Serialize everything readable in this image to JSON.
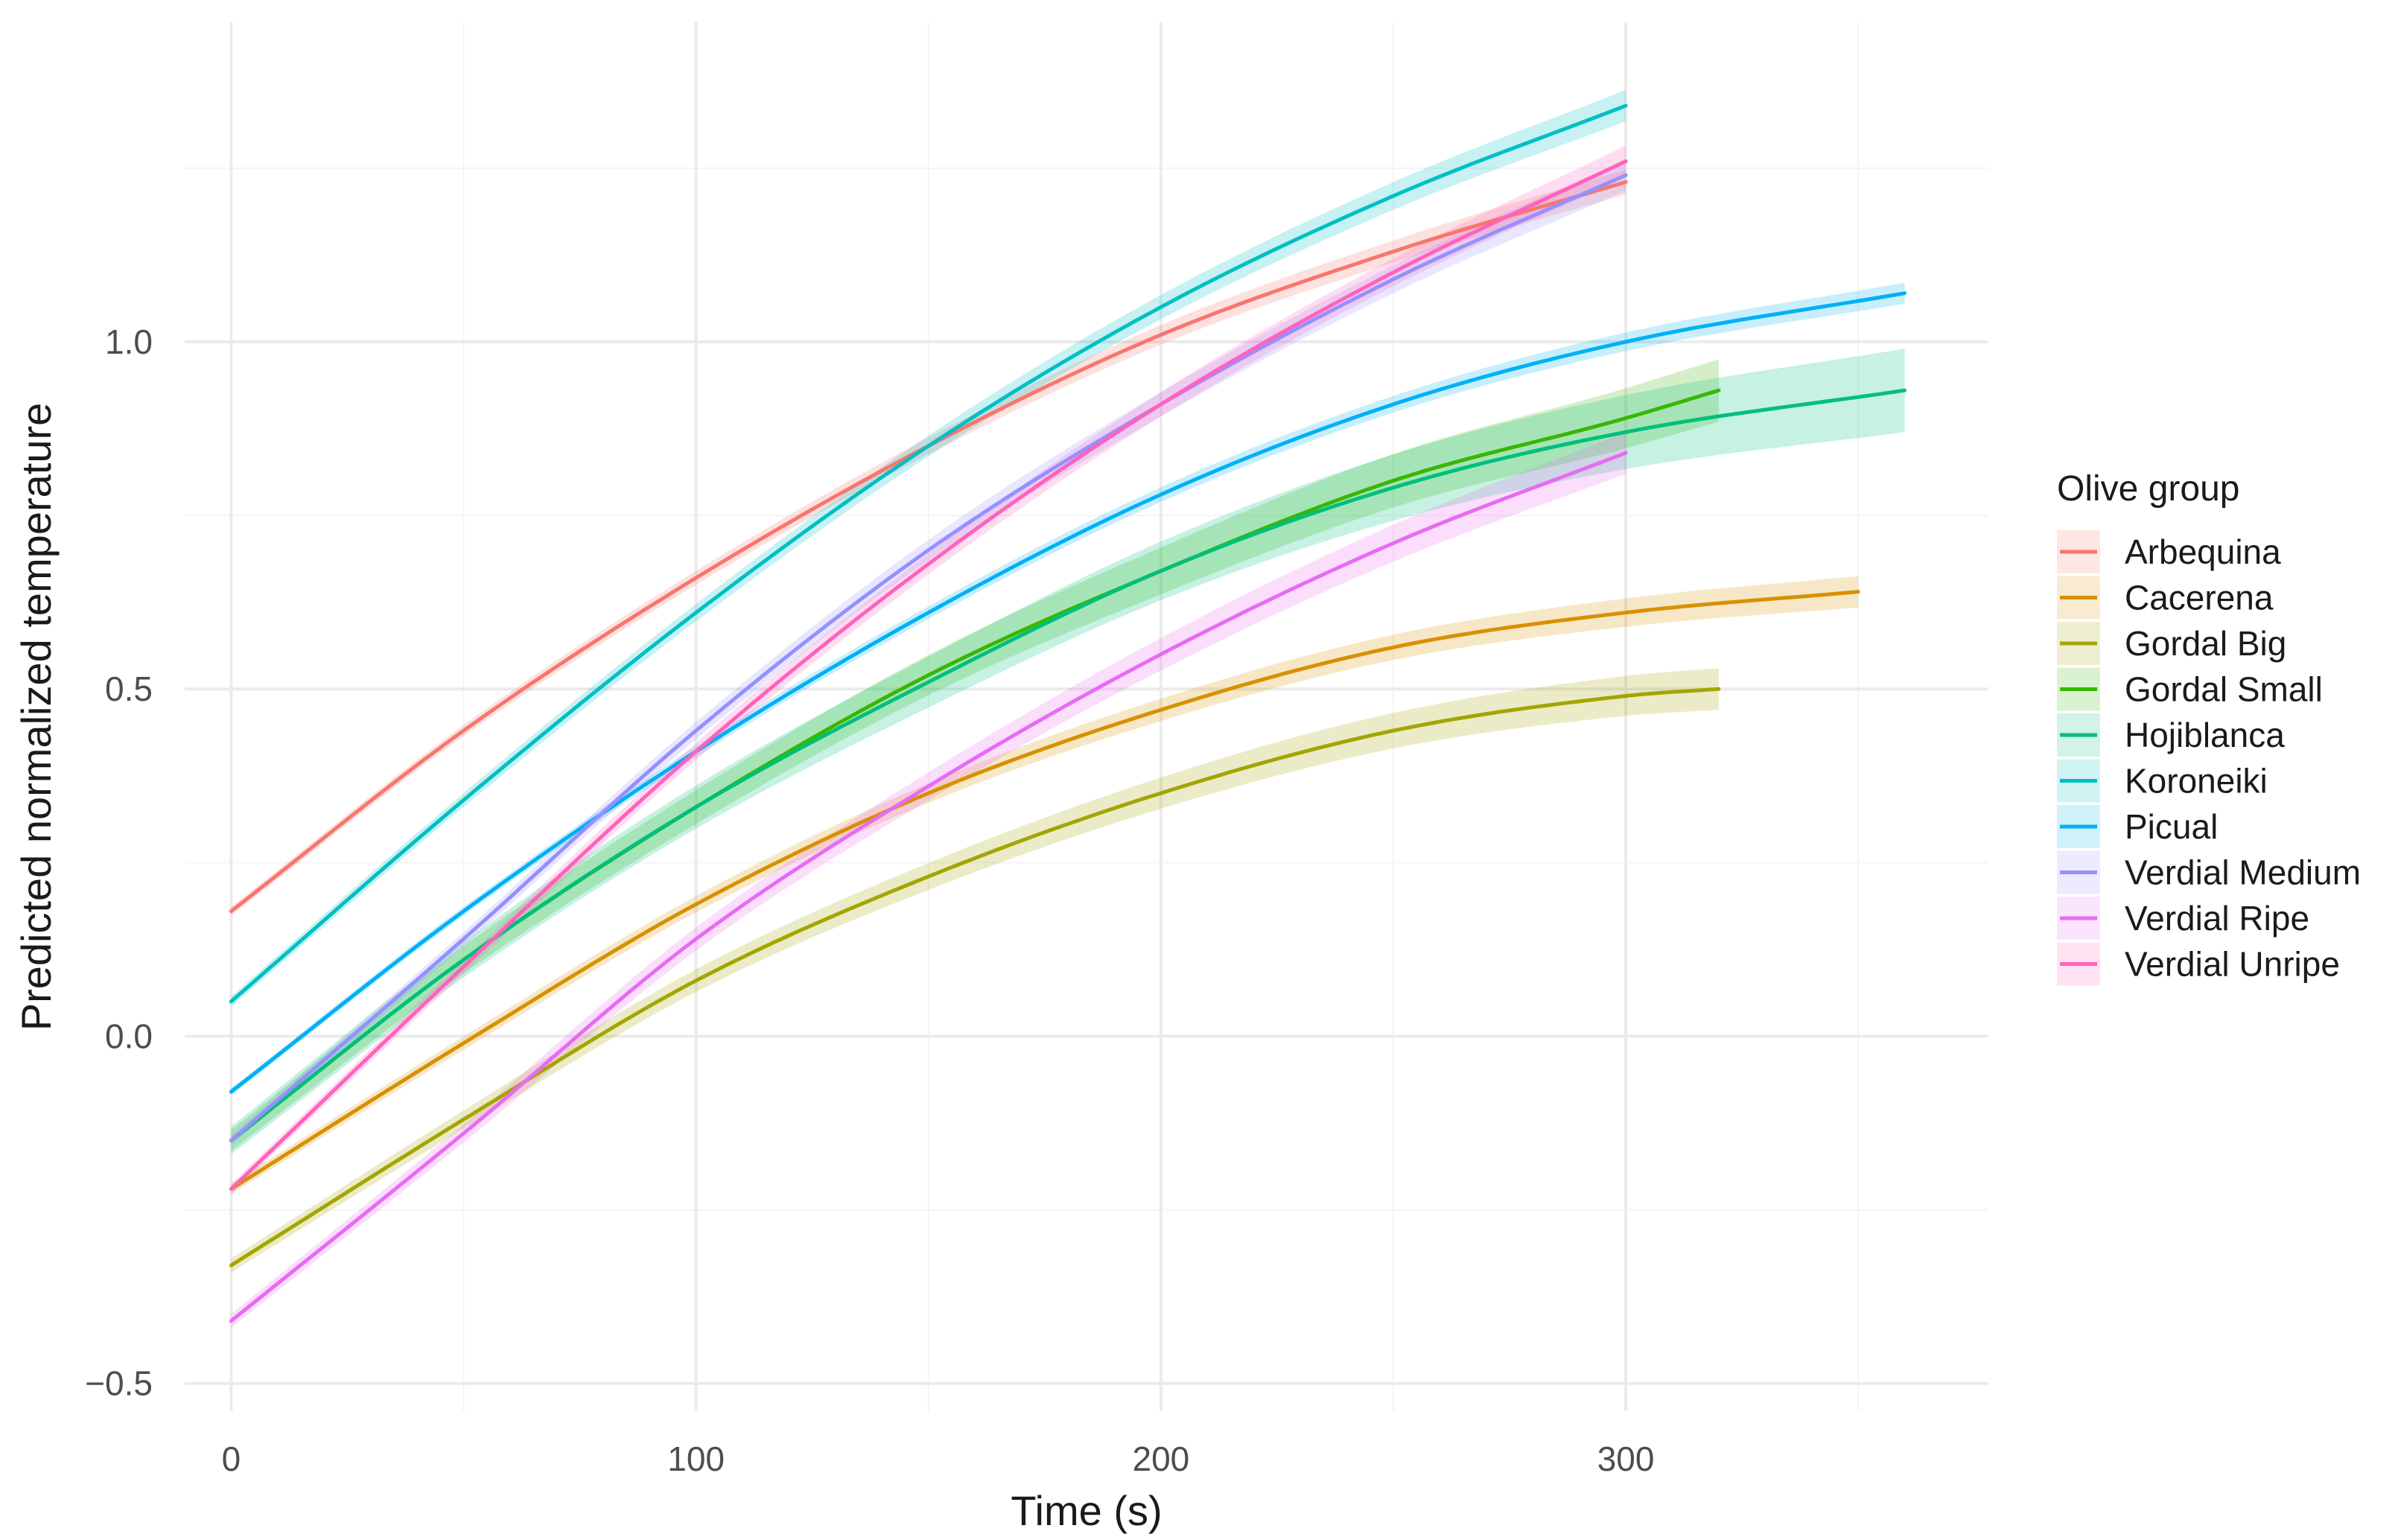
{
  "chart_data": {
    "type": "line",
    "xlabel": "Time (s)",
    "ylabel": "Predicted normalized temperature",
    "xlim": [
      -10,
      378
    ],
    "ylim": [
      -0.54,
      1.46
    ],
    "x_ticks": [
      0,
      100,
      200,
      300
    ],
    "x_tick_labels": [
      "0",
      "100",
      "200",
      "300"
    ],
    "y_ticks": [
      -0.5,
      0.0,
      0.5,
      1.0
    ],
    "y_tick_labels": [
      "−0.5",
      "0.0",
      "0.5",
      "1.0"
    ],
    "grid": true,
    "legend": {
      "title": "Olive group",
      "position": "right"
    },
    "series": [
      {
        "name": "Arbequina",
        "color": "#F8766D",
        "band": 0.012,
        "x": [
          0,
          50,
          100,
          150,
          200,
          250,
          300
        ],
        "y": [
          0.18,
          0.44,
          0.66,
          0.85,
          1.01,
          1.13,
          1.23
        ]
      },
      {
        "name": "Cacerena",
        "color": "#D89000",
        "band": 0.015,
        "x": [
          0,
          50,
          100,
          150,
          200,
          250,
          300,
          350
        ],
        "y": [
          -0.22,
          -0.01,
          0.19,
          0.35,
          0.47,
          0.56,
          0.61,
          0.64
        ]
      },
      {
        "name": "Gordal Big",
        "color": "#A3A500",
        "band": 0.02,
        "x": [
          0,
          50,
          100,
          150,
          200,
          250,
          300,
          320
        ],
        "y": [
          -0.33,
          -0.12,
          0.08,
          0.23,
          0.35,
          0.44,
          0.49,
          0.5
        ]
      },
      {
        "name": "Gordal Small",
        "color": "#39B600",
        "band": 0.03,
        "x": [
          0,
          50,
          100,
          150,
          200,
          250,
          300,
          320
        ],
        "y": [
          -0.15,
          0.11,
          0.33,
          0.52,
          0.67,
          0.8,
          0.89,
          0.93
        ]
      },
      {
        "name": "Hojiblanca",
        "color": "#00BF7D",
        "band": 0.04,
        "x": [
          0,
          50,
          100,
          150,
          200,
          250,
          300,
          360
        ],
        "y": [
          -0.15,
          0.11,
          0.33,
          0.51,
          0.67,
          0.79,
          0.87,
          0.93
        ]
      },
      {
        "name": "Koroneiki",
        "color": "#00BFC4",
        "band": 0.015,
        "x": [
          0,
          50,
          100,
          150,
          200,
          250,
          300
        ],
        "y": [
          0.05,
          0.34,
          0.61,
          0.85,
          1.05,
          1.21,
          1.34
        ]
      },
      {
        "name": "Picual",
        "color": "#00B0F6",
        "band": 0.01,
        "x": [
          0,
          50,
          100,
          150,
          200,
          250,
          300,
          360
        ],
        "y": [
          -0.08,
          0.18,
          0.41,
          0.61,
          0.78,
          0.91,
          1.0,
          1.07
        ]
      },
      {
        "name": "Verdial Medium",
        "color": "#9590FF",
        "band": 0.015,
        "x": [
          0,
          50,
          100,
          150,
          200,
          250,
          300
        ],
        "y": [
          -0.15,
          0.14,
          0.44,
          0.7,
          0.91,
          1.09,
          1.24
        ]
      },
      {
        "name": "Verdial Ripe",
        "color": "#E76BF3",
        "band": 0.02,
        "x": [
          0,
          50,
          100,
          150,
          200,
          250,
          300
        ],
        "y": [
          -0.41,
          -0.14,
          0.14,
          0.36,
          0.55,
          0.71,
          0.84
        ]
      },
      {
        "name": "Verdial Unripe",
        "color": "#FF62BC",
        "band": 0.015,
        "x": [
          0,
          50,
          100,
          150,
          200,
          250,
          300
        ],
        "y": [
          -0.22,
          0.1,
          0.41,
          0.68,
          0.91,
          1.1,
          1.26
        ]
      }
    ]
  }
}
